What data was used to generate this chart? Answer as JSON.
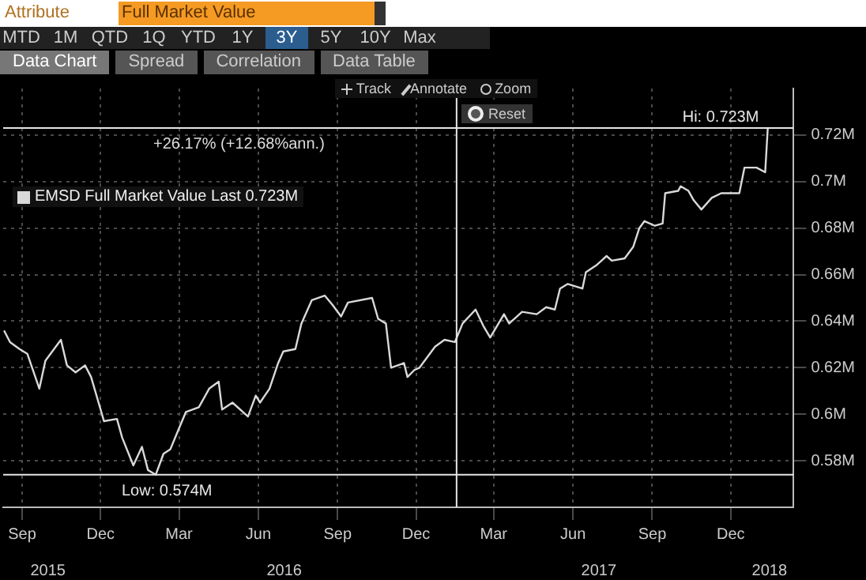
{
  "chart_data": [
    {
      "type": "other",
      "annotations": [
        "Attribute",
        "Full Market Value",
        "MTD",
        "1M",
        "QTD",
        "1Q",
        "YTD",
        "1Y",
        "3Y",
        "5Y",
        "10Y",
        "Max",
        "Data Chart",
        "Spread",
        "Correlation",
        "Data Table",
        "Track",
        "Annotate",
        "Zoom",
        "Reset"
      ]
    },
    {
      "type": "line",
      "xlim": [
        "2015-08-10",
        "2018-02-12"
      ],
      "xticks": [
        {
          "value": "2015-09-01",
          "label": "Sep"
        },
        {
          "value": "2015-12-01",
          "label": "Dec"
        },
        {
          "value": "2016-03-01",
          "label": "Mar"
        },
        {
          "value": "2016-06-01",
          "label": "Jun"
        },
        {
          "value": "2016-09-01",
          "label": "Sep"
        },
        {
          "value": "2016-12-01",
          "label": "Dec"
        },
        {
          "value": "2017-03-01",
          "label": "Mar"
        },
        {
          "value": "2017-06-01",
          "label": "Jun"
        },
        {
          "value": "2017-09-01",
          "label": "Sep"
        },
        {
          "value": "2017-12-01",
          "label": "Dec"
        }
      ],
      "x2lim": [
        "2015-08-10",
        "2018-02-12"
      ],
      "x2ticks": [
        {
          "value": "2015-10-01",
          "label": "2015"
        },
        {
          "value": "2016-07-01",
          "label": "2016"
        },
        {
          "value": "2017-07-01",
          "label": "2017"
        },
        {
          "value": "2018-01-15",
          "label": "2018"
        }
      ],
      "ylim": [
        0.56,
        0.74
      ],
      "yticks": [
        {
          "value": 0.58,
          "label": "0.58M"
        },
        {
          "value": 0.6,
          "label": "0.6M"
        },
        {
          "value": 0.62,
          "label": "0.62M"
        },
        {
          "value": 0.64,
          "label": "0.64M"
        },
        {
          "value": 0.66,
          "label": "0.66M"
        },
        {
          "value": 0.68,
          "label": "0.68M"
        },
        {
          "value": 0.7,
          "label": "0.7M"
        },
        {
          "value": 0.72,
          "label": "0.72M"
        }
      ],
      "grid": true,
      "legend": "top left",
      "marker": "none",
      "line_style": "solid",
      "ref_lines": [
        {
          "axis": "y",
          "value": 0.574,
          "label": "Low: 0.574M",
          "color": "#e6e6e6"
        },
        {
          "axis": "y",
          "value": 0.723,
          "label": "Hi: 0.723M",
          "color": "#e6e6e6"
        },
        {
          "axis": "x",
          "value": "2017-01-17",
          "color": "#e6e6e6"
        }
      ],
      "annotations": [
        "+26.17% (+12.68%ann.)"
      ],
      "series": [
        {
          "name": "EMSD Full Market Value Last 0.723M",
          "color": "#d9d9d9",
          "x": [
            "2015-08-11",
            "2015-08-18",
            "2015-08-29",
            "2015-09-07",
            "2015-09-21",
            "2015-09-28",
            "2015-10-16",
            "2015-10-23",
            "2015-11-02",
            "2015-11-13",
            "2015-11-20",
            "2015-12-05",
            "2015-12-20",
            "2015-12-26",
            "2016-01-08",
            "2016-01-18",
            "2016-01-25",
            "2016-02-03",
            "2016-02-12",
            "2016-02-20",
            "2016-02-29",
            "2016-03-09",
            "2016-03-24",
            "2016-04-05",
            "2016-04-16",
            "2016-04-20",
            "2016-05-02",
            "2016-05-20",
            "2016-05-29",
            "2016-06-03",
            "2016-06-14",
            "2016-06-24",
            "2016-06-30",
            "2016-07-14",
            "2016-07-21",
            "2016-08-02",
            "2016-08-17",
            "2016-08-26",
            "2016-09-05",
            "2016-09-13",
            "2016-10-11",
            "2016-10-18",
            "2016-10-27",
            "2016-11-02",
            "2016-11-17",
            "2016-11-21",
            "2016-11-29",
            "2016-12-05",
            "2016-12-23",
            "2017-01-03",
            "2017-01-15",
            "2017-01-24",
            "2017-02-08",
            "2017-02-17",
            "2017-02-25",
            "2017-03-13",
            "2017-03-19",
            "2017-04-03",
            "2017-04-20",
            "2017-05-01",
            "2017-05-11",
            "2017-05-17",
            "2017-05-26",
            "2017-06-12",
            "2017-06-16",
            "2017-06-28",
            "2017-07-10",
            "2017-07-16",
            "2017-07-31",
            "2017-08-10",
            "2017-08-17",
            "2017-08-23",
            "2017-09-04",
            "2017-09-13",
            "2017-09-16",
            "2017-10-01",
            "2017-10-04",
            "2017-10-13",
            "2017-10-19",
            "2017-10-28",
            "2017-11-09",
            "2017-11-20",
            "2017-11-29",
            "2017-12-11",
            "2017-12-17",
            "2017-12-31",
            "2018-01-10",
            "2018-01-13"
          ],
          "values": [
            0.636,
            0.631,
            0.628,
            0.626,
            0.611,
            0.623,
            0.632,
            0.621,
            0.618,
            0.621,
            0.616,
            0.597,
            0.598,
            0.59,
            0.578,
            0.586,
            0.576,
            0.574,
            0.583,
            0.585,
            0.593,
            0.601,
            0.603,
            0.611,
            0.614,
            0.602,
            0.605,
            0.599,
            0.608,
            0.605,
            0.611,
            0.622,
            0.627,
            0.628,
            0.639,
            0.649,
            0.651,
            0.647,
            0.642,
            0.648,
            0.65,
            0.641,
            0.639,
            0.62,
            0.622,
            0.616,
            0.619,
            0.62,
            0.629,
            0.632,
            0.631,
            0.639,
            0.645,
            0.638,
            0.633,
            0.643,
            0.639,
            0.644,
            0.643,
            0.646,
            0.645,
            0.654,
            0.656,
            0.654,
            0.661,
            0.664,
            0.668,
            0.666,
            0.667,
            0.672,
            0.68,
            0.683,
            0.681,
            0.682,
            0.695,
            0.696,
            0.698,
            0.696,
            0.692,
            0.688,
            0.693,
            0.695,
            0.695,
            0.695,
            0.706,
            0.706,
            0.704,
            0.723
          ]
        }
      ]
    }
  ]
}
